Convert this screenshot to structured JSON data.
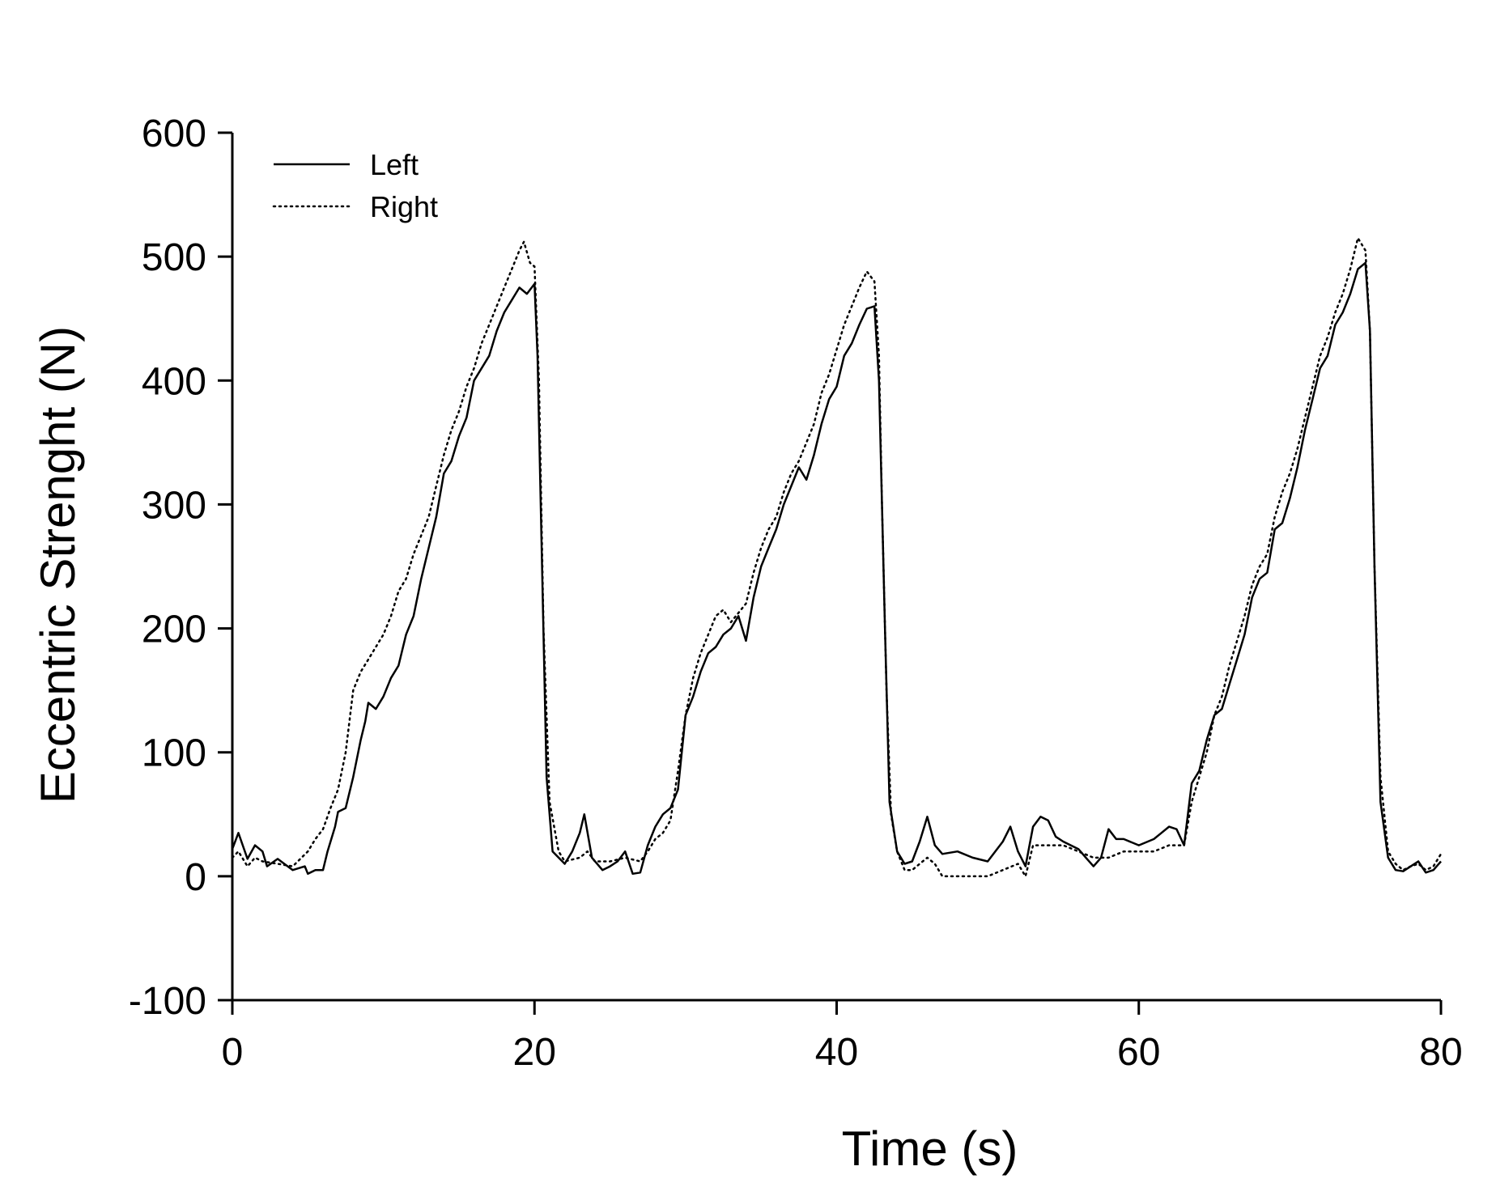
{
  "chart_data": {
    "type": "line",
    "title": "",
    "xlabel": "Time (s)",
    "ylabel": "Eccentric Strenght (N)",
    "xlim": [
      0,
      80
    ],
    "ylim": [
      -100,
      600
    ],
    "xticks": [
      "0",
      "20",
      "40",
      "60",
      "80"
    ],
    "yticks": [
      "-100",
      "0",
      "100",
      "200",
      "300",
      "400",
      "500",
      "600"
    ],
    "grid": false,
    "legend": "top-left",
    "series": [
      {
        "name": "Left",
        "style": "solid",
        "color": "#000000",
        "points": [
          [
            0,
            22
          ],
          [
            0.4,
            35
          ],
          [
            1,
            14
          ],
          [
            1.5,
            25
          ],
          [
            2,
            20
          ],
          [
            2.3,
            8
          ],
          [
            3,
            14
          ],
          [
            4,
            5
          ],
          [
            4.8,
            8
          ],
          [
            5,
            2
          ],
          [
            5.5,
            5
          ],
          [
            6,
            5
          ],
          [
            6.3,
            20
          ],
          [
            6.8,
            40
          ],
          [
            7,
            52
          ],
          [
            7.5,
            55
          ],
          [
            8,
            80
          ],
          [
            8.5,
            110
          ],
          [
            8.8,
            125
          ],
          [
            9,
            140
          ],
          [
            9.5,
            135
          ],
          [
            10,
            145
          ],
          [
            10.5,
            160
          ],
          [
            11,
            170
          ],
          [
            11.5,
            195
          ],
          [
            12,
            210
          ],
          [
            12.5,
            240
          ],
          [
            13,
            265
          ],
          [
            13.5,
            290
          ],
          [
            14,
            325
          ],
          [
            14.5,
            335
          ],
          [
            15,
            355
          ],
          [
            15.5,
            370
          ],
          [
            16,
            400
          ],
          [
            17,
            420
          ],
          [
            17.5,
            440
          ],
          [
            18,
            455
          ],
          [
            18.5,
            465
          ],
          [
            19,
            475
          ],
          [
            19.5,
            470
          ],
          [
            20,
            478
          ],
          [
            20.2,
            420
          ],
          [
            20.5,
            250
          ],
          [
            20.8,
            80
          ],
          [
            21.2,
            20
          ],
          [
            22,
            10
          ],
          [
            22.5,
            20
          ],
          [
            23,
            35
          ],
          [
            23.3,
            50
          ],
          [
            23.8,
            15
          ],
          [
            24.5,
            5
          ],
          [
            25,
            8
          ],
          [
            25.5,
            12
          ],
          [
            26,
            20
          ],
          [
            26.5,
            2
          ],
          [
            27,
            3
          ],
          [
            27.5,
            25
          ],
          [
            28,
            40
          ],
          [
            28.5,
            50
          ],
          [
            29,
            55
          ],
          [
            29.5,
            70
          ],
          [
            30,
            130
          ],
          [
            30.5,
            145
          ],
          [
            31,
            165
          ],
          [
            31.5,
            180
          ],
          [
            32,
            185
          ],
          [
            32.5,
            195
          ],
          [
            33,
            200
          ],
          [
            33.5,
            210
          ],
          [
            34,
            190
          ],
          [
            34.5,
            225
          ],
          [
            35,
            250
          ],
          [
            35.5,
            265
          ],
          [
            36,
            280
          ],
          [
            36.5,
            300
          ],
          [
            37,
            315
          ],
          [
            37.5,
            330
          ],
          [
            38,
            320
          ],
          [
            38.5,
            340
          ],
          [
            39,
            365
          ],
          [
            39.5,
            385
          ],
          [
            40,
            395
          ],
          [
            40.5,
            420
          ],
          [
            41,
            430
          ],
          [
            41.5,
            445
          ],
          [
            42,
            458
          ],
          [
            42.5,
            460
          ],
          [
            42.8,
            400
          ],
          [
            43.2,
            200
          ],
          [
            43.5,
            60
          ],
          [
            44,
            20
          ],
          [
            44.5,
            10
          ],
          [
            45,
            12
          ],
          [
            45.5,
            28
          ],
          [
            46,
            48
          ],
          [
            46.5,
            25
          ],
          [
            47,
            18
          ],
          [
            48,
            20
          ],
          [
            49,
            15
          ],
          [
            50,
            12
          ],
          [
            51,
            28
          ],
          [
            51.5,
            40
          ],
          [
            52,
            20
          ],
          [
            52.5,
            8
          ],
          [
            53,
            40
          ],
          [
            53.5,
            48
          ],
          [
            54,
            45
          ],
          [
            54.5,
            32
          ],
          [
            55,
            28
          ],
          [
            56,
            22
          ],
          [
            56.5,
            15
          ],
          [
            57,
            8
          ],
          [
            57.5,
            15
          ],
          [
            58,
            38
          ],
          [
            58.5,
            30
          ],
          [
            59,
            30
          ],
          [
            60,
            25
          ],
          [
            61,
            30
          ],
          [
            61.5,
            35
          ],
          [
            62,
            40
          ],
          [
            62.5,
            38
          ],
          [
            63,
            25
          ],
          [
            63.5,
            75
          ],
          [
            64,
            85
          ],
          [
            64.5,
            110
          ],
          [
            65,
            130
          ],
          [
            65.5,
            135
          ],
          [
            66,
            155
          ],
          [
            66.5,
            175
          ],
          [
            67,
            195
          ],
          [
            67.5,
            225
          ],
          [
            68,
            240
          ],
          [
            68.5,
            245
          ],
          [
            69,
            280
          ],
          [
            69.5,
            285
          ],
          [
            70,
            305
          ],
          [
            70.5,
            330
          ],
          [
            71,
            360
          ],
          [
            71.5,
            385
          ],
          [
            72,
            410
          ],
          [
            72.5,
            420
          ],
          [
            73,
            445
          ],
          [
            73.5,
            455
          ],
          [
            74,
            470
          ],
          [
            74.5,
            490
          ],
          [
            75,
            495
          ],
          [
            75.3,
            440
          ],
          [
            75.6,
            250
          ],
          [
            76,
            60
          ],
          [
            76.5,
            15
          ],
          [
            77,
            5
          ],
          [
            77.5,
            4
          ],
          [
            78,
            8
          ],
          [
            78.5,
            12
          ],
          [
            79,
            3
          ],
          [
            79.5,
            5
          ],
          [
            80,
            12
          ]
        ]
      },
      {
        "name": "Right",
        "style": "dotted",
        "color": "#000000",
        "points": [
          [
            0,
            15
          ],
          [
            0.4,
            20
          ],
          [
            1,
            8
          ],
          [
            1.5,
            15
          ],
          [
            2,
            12
          ],
          [
            3,
            10
          ],
          [
            4,
            8
          ],
          [
            5,
            20
          ],
          [
            5.5,
            30
          ],
          [
            6,
            38
          ],
          [
            6.5,
            55
          ],
          [
            7,
            70
          ],
          [
            7.5,
            100
          ],
          [
            8,
            150
          ],
          [
            8.5,
            165
          ],
          [
            9,
            175
          ],
          [
            9.5,
            185
          ],
          [
            10,
            195
          ],
          [
            10.5,
            210
          ],
          [
            11,
            230
          ],
          [
            11.5,
            240
          ],
          [
            12,
            260
          ],
          [
            12.5,
            275
          ],
          [
            13,
            290
          ],
          [
            13.5,
            315
          ],
          [
            14,
            340
          ],
          [
            14.5,
            360
          ],
          [
            15,
            375
          ],
          [
            15.5,
            395
          ],
          [
            16,
            410
          ],
          [
            16.5,
            430
          ],
          [
            17,
            445
          ],
          [
            17.5,
            460
          ],
          [
            18,
            475
          ],
          [
            18.5,
            490
          ],
          [
            19,
            505
          ],
          [
            19.3,
            512
          ],
          [
            19.7,
            495
          ],
          [
            20,
            492
          ],
          [
            20.3,
            400
          ],
          [
            20.6,
            200
          ],
          [
            21,
            60
          ],
          [
            21.3,
            40
          ],
          [
            21.6,
            20
          ],
          [
            22,
            12
          ],
          [
            23,
            15
          ],
          [
            23.5,
            20
          ],
          [
            24,
            12
          ],
          [
            25,
            12
          ],
          [
            26,
            15
          ],
          [
            27,
            12
          ],
          [
            27.5,
            20
          ],
          [
            28,
            30
          ],
          [
            28.5,
            35
          ],
          [
            29,
            45
          ],
          [
            29.5,
            85
          ],
          [
            30,
            130
          ],
          [
            30.5,
            160
          ],
          [
            31,
            180
          ],
          [
            31.5,
            195
          ],
          [
            32,
            210
          ],
          [
            32.5,
            215
          ],
          [
            33,
            205
          ],
          [
            34,
            220
          ],
          [
            34.5,
            245
          ],
          [
            35,
            265
          ],
          [
            35.5,
            280
          ],
          [
            36,
            290
          ],
          [
            36.5,
            310
          ],
          [
            37,
            325
          ],
          [
            37.5,
            335
          ],
          [
            38,
            350
          ],
          [
            38.5,
            365
          ],
          [
            39,
            390
          ],
          [
            39.5,
            405
          ],
          [
            40,
            425
          ],
          [
            40.5,
            445
          ],
          [
            41,
            460
          ],
          [
            41.5,
            475
          ],
          [
            42,
            488
          ],
          [
            42.5,
            480
          ],
          [
            42.8,
            420
          ],
          [
            43,
            300
          ],
          [
            43.3,
            150
          ],
          [
            43.6,
            50
          ],
          [
            44,
            20
          ],
          [
            44.5,
            5
          ],
          [
            45,
            5
          ],
          [
            45.5,
            10
          ],
          [
            46,
            15
          ],
          [
            46.5,
            10
          ],
          [
            47,
            0
          ],
          [
            48,
            0
          ],
          [
            49,
            0
          ],
          [
            50,
            0
          ],
          [
            51,
            5
          ],
          [
            52,
            10
          ],
          [
            52.5,
            0
          ],
          [
            53,
            25
          ],
          [
            54,
            25
          ],
          [
            55,
            25
          ],
          [
            56,
            20
          ],
          [
            57,
            15
          ],
          [
            58,
            15
          ],
          [
            59,
            20
          ],
          [
            60,
            20
          ],
          [
            61,
            20
          ],
          [
            62,
            25
          ],
          [
            63,
            25
          ],
          [
            63.5,
            60
          ],
          [
            64,
            80
          ],
          [
            64.5,
            100
          ],
          [
            65,
            130
          ],
          [
            65.5,
            145
          ],
          [
            66,
            170
          ],
          [
            66.5,
            190
          ],
          [
            67,
            210
          ],
          [
            67.5,
            235
          ],
          [
            68,
            250
          ],
          [
            68.5,
            260
          ],
          [
            69,
            290
          ],
          [
            69.5,
            310
          ],
          [
            70,
            325
          ],
          [
            70.5,
            345
          ],
          [
            71,
            370
          ],
          [
            71.5,
            395
          ],
          [
            72,
            420
          ],
          [
            72.5,
            435
          ],
          [
            73,
            455
          ],
          [
            73.5,
            470
          ],
          [
            74,
            490
          ],
          [
            74.5,
            515
          ],
          [
            75,
            505
          ],
          [
            75.3,
            440
          ],
          [
            75.6,
            250
          ],
          [
            76,
            80
          ],
          [
            76.5,
            20
          ],
          [
            77,
            10
          ],
          [
            77.5,
            5
          ],
          [
            78,
            8
          ],
          [
            78.5,
            10
          ],
          [
            79,
            5
          ],
          [
            79.5,
            8
          ],
          [
            80,
            18
          ]
        ]
      }
    ]
  }
}
